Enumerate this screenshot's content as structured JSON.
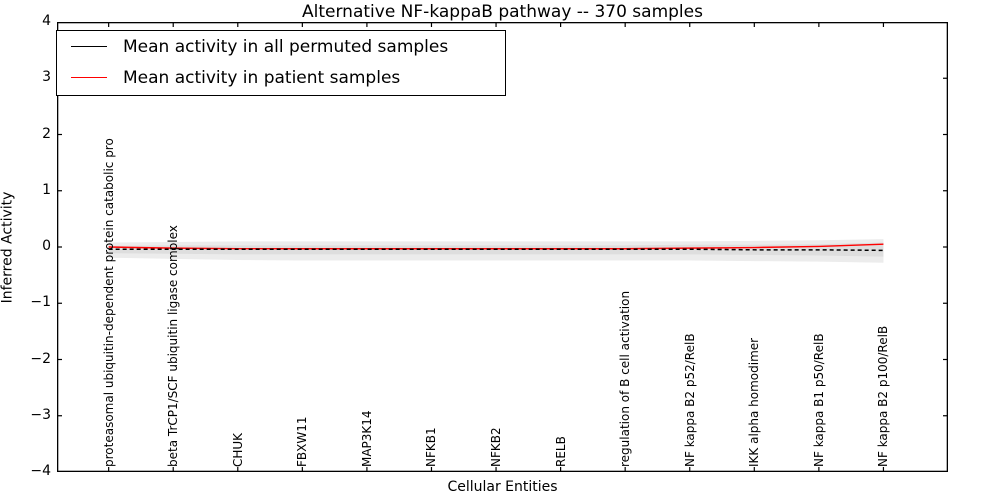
{
  "chart_data": {
    "type": "line",
    "title": "Alternative NF-kappaB pathway -- 370 samples",
    "xlabel": "Cellular Entities",
    "ylabel": "Inferred Activity",
    "ylim": [
      -4,
      4
    ],
    "xlim": [
      -0.8,
      13.0
    ],
    "grid": false,
    "legend_position": "upper left",
    "yticks": [
      4,
      3,
      2,
      1,
      0,
      -1,
      -2,
      -3,
      -4
    ],
    "ytick_labels": [
      "4",
      "3",
      "2",
      "1",
      "0",
      "−1",
      "−2",
      "−3",
      "−4"
    ],
    "categories": [
      "proteasomal ubiquitin-dependent protein catabolic pro",
      "beta TrCP1/SCF ubiquitin ligase complex",
      "CHUK",
      "FBXW11",
      "MAP3K14",
      "NFKB1",
      "NFKB2",
      "RELB",
      "regulation of B cell activation",
      "NF kappa B2 p52/RelB",
      "IKK alpha homodimer",
      "NF kappa B1 p50/RelB",
      "NF kappa B2 p100/RelB"
    ],
    "series": [
      {
        "name": "Mean activity in all permuted samples",
        "color": "#000000",
        "style": "dashed",
        "values": [
          -0.04,
          -0.04,
          -0.04,
          -0.04,
          -0.04,
          -0.04,
          -0.04,
          -0.04,
          -0.04,
          -0.04,
          -0.05,
          -0.05,
          -0.06
        ]
      },
      {
        "name": "Mean activity in patient samples",
        "color": "#ff0000",
        "style": "solid",
        "values": [
          0.0,
          -0.02,
          -0.03,
          -0.03,
          -0.03,
          -0.03,
          -0.03,
          -0.03,
          -0.03,
          -0.02,
          -0.01,
          0.01,
          0.05
        ]
      }
    ],
    "bands": [
      {
        "name": "permuted-activity-spread-outer",
        "color": "#ececec",
        "upper": [
          0.08,
          0.09,
          0.1,
          0.1,
          0.1,
          0.1,
          0.1,
          0.1,
          0.1,
          0.1,
          0.11,
          0.12,
          0.14
        ],
        "lower": [
          -0.19,
          -0.21,
          -0.23,
          -0.24,
          -0.24,
          -0.24,
          -0.24,
          -0.24,
          -0.24,
          -0.24,
          -0.25,
          -0.26,
          -0.28
        ]
      },
      {
        "name": "permuted-activity-spread-inner",
        "color": "#dedede",
        "upper": [
          0.02,
          0.03,
          0.03,
          0.03,
          0.03,
          0.03,
          0.03,
          0.03,
          0.03,
          0.04,
          0.04,
          0.05,
          0.08
        ],
        "lower": [
          -0.11,
          -0.12,
          -0.13,
          -0.13,
          -0.13,
          -0.13,
          -0.13,
          -0.13,
          -0.13,
          -0.13,
          -0.14,
          -0.15,
          -0.17
        ]
      }
    ]
  }
}
